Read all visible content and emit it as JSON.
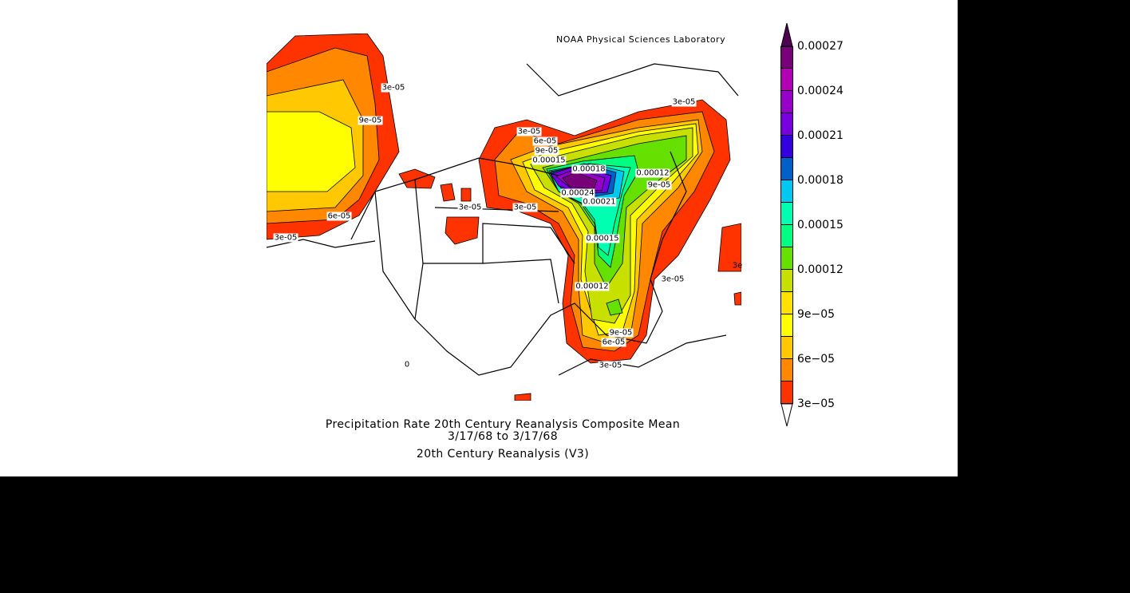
{
  "credit": "NOAA Physical Sciences Laboratory",
  "title": {
    "line1": "Precipitation Rate 20th Century Reanalysis Composite Mean",
    "line2": "3/17/68  to 3/17/68",
    "line3": "20th Century Reanalysis (V3)"
  },
  "colorbar": {
    "labels": [
      "0.00027",
      "0.00024",
      "0.00021",
      "0.00018",
      "0.00015",
      "0.00012",
      "9e−05",
      "6e−05",
      "3e−05"
    ],
    "colors_top_to_bottom": [
      "#780078",
      "#b400b4",
      "#9600c8",
      "#7800e0",
      "#3300e0",
      "#0060c8",
      "#00c8f0",
      "#00ffb0",
      "#00ff80",
      "#66e000",
      "#c8e000",
      "#ffe000",
      "#ffff00",
      "#ffc800",
      "#ff8800",
      "#ff3300"
    ],
    "over_color": "#500050",
    "under_color": "#ffffff"
  },
  "contour_labels": [
    "3e-05",
    "9e-05",
    "6e-05",
    "3e-05",
    "3e-05",
    "6e-05",
    "9e-05",
    "0.00015",
    "0.00018",
    "0.00024",
    "0.00021",
    "0.00012",
    "9e-05",
    "3e-05",
    "3e-05",
    "0.00015",
    "0.00012",
    "3e-05",
    "3e-05",
    "9e-05",
    "6e-05",
    "3e-05",
    "0",
    "3e"
  ]
}
